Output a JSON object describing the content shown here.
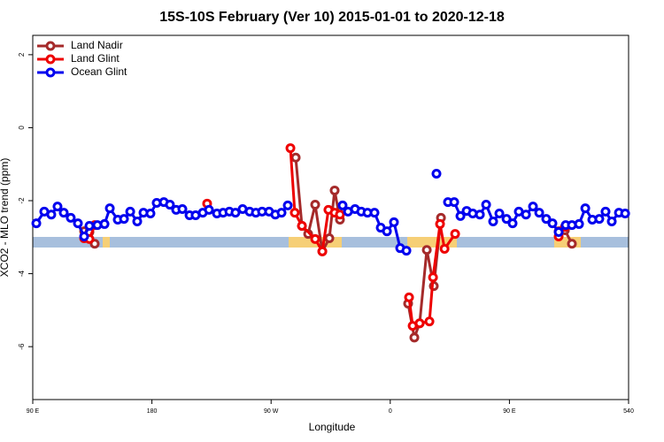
{
  "chart_data": {
    "type": "line",
    "title": "15S-10S February (Ver 10)   2015-01-01 to 2020-12-18",
    "x_label": "Longitude",
    "y_label": "XCO2 - MLO trend (ppm)",
    "xlim": [
      90,
      540
    ],
    "ylim": [
      -7.45,
      2.53
    ],
    "xticks": [
      {
        "value": 90,
        "label": "90 E"
      },
      180,
      {
        "value": 270,
        "label": "90 W"
      },
      {
        "value": 360,
        "label": "0"
      },
      {
        "value": 450,
        "label": "90 E"
      },
      540
    ],
    "yticks": [
      2,
      0,
      -2,
      -4,
      -6
    ],
    "legend": "top-left",
    "series": [
      {
        "name": "Land Nadir",
        "color": "#a52a2a",
        "x": [
          128.8,
          132.8,
          136.8,
          null,
          288.6,
          293.3,
          298.0,
          303.3,
          308.7,
          314.0,
          318.0,
          322.0,
          null,
          373.5,
          378.2,
          382.2,
          387.6,
          392.9,
          398.3,
          null,
          487.2,
          491.9,
          497.2
        ],
        "values": [
          -2.84,
          -2.86,
          -3.18,
          null,
          -0.82,
          -2.69,
          -2.91,
          -2.11,
          -3.39,
          -3.03,
          -1.72,
          -2.52,
          null,
          -4.82,
          -5.75,
          -5.36,
          -3.35,
          -4.34,
          -2.47,
          null,
          -2.84,
          -2.81,
          -3.18
        ]
      },
      {
        "name": "Land Glint",
        "color": "#ee0000",
        "x": [
          128.8,
          132.8,
          136.8,
          null,
          221.7,
          null,
          284.6,
          287.9,
          293.3,
          303.3,
          308.7,
          313.3,
          318.0,
          322.0,
          null,
          374.2,
          376.9,
          382.2,
          389.6,
          392.3,
          397.6,
          401.0,
          409.0,
          null,
          487.2,
          491.9
        ],
        "values": [
          -3.03,
          -3.05,
          -2.67,
          null,
          -2.08,
          null,
          -0.56,
          -2.33,
          -2.69,
          -3.05,
          -3.39,
          -2.25,
          -2.33,
          -2.38,
          null,
          -4.65,
          -5.43,
          -5.36,
          -5.31,
          -4.1,
          -2.64,
          -3.32,
          -2.91,
          null,
          -2.98,
          -2.72
        ]
      },
      {
        "name": "Ocean Glint",
        "color": "#0000ee",
        "x": [
          92.7,
          98.7,
          104.0,
          108.7,
          113.4,
          118.7,
          124.1,
          128.8,
          132.8,
          138.8,
          144.2,
          148.2,
          154.2,
          158.9,
          163.6,
          168.9,
          173.6,
          178.9,
          183.6,
          189.0,
          193.6,
          198.3,
          203.0,
          208.4,
          213.0,
          218.4,
          223.1,
          229.1,
          233.8,
          238.5,
          243.1,
          248.5,
          253.8,
          258.5,
          263.2,
          268.5,
          273.2,
          277.9,
          282.6,
          null,
          324.0,
          328.1,
          333.4,
          338.1,
          342.8,
          348.1,
          352.8,
          357.5,
          362.8,
          367.5,
          372.2,
          null,
          394.9,
          null,
          403.6,
          408.3,
          413.0,
          417.7,
          422.3,
          427.7,
          432.4,
          437.7,
          442.4,
          447.8,
          452.4,
          457.1,
          462.5,
          467.8,
          472.5,
          477.8,
          482.5,
          487.2,
          492.5,
          497.2,
          502.6,
          507.3,
          512.6,
          517.9,
          522.6,
          527.3,
          532.7,
          537.4
        ],
        "values": [
          -2.62,
          -2.3,
          -2.38,
          -2.16,
          -2.33,
          -2.47,
          -2.62,
          -2.98,
          -2.69,
          -2.67,
          -2.64,
          -2.21,
          -2.52,
          -2.5,
          -2.3,
          -2.57,
          -2.33,
          -2.35,
          -2.06,
          -2.04,
          -2.11,
          -2.25,
          -2.23,
          -2.4,
          -2.4,
          -2.33,
          -2.25,
          -2.35,
          -2.33,
          -2.3,
          -2.33,
          -2.23,
          -2.3,
          -2.33,
          -2.3,
          -2.3,
          -2.38,
          -2.33,
          -2.13,
          null,
          -2.13,
          -2.3,
          -2.23,
          -2.3,
          -2.33,
          -2.33,
          -2.74,
          -2.84,
          -2.59,
          -3.3,
          -3.37,
          null,
          -1.26,
          null,
          -2.04,
          -2.04,
          -2.42,
          -2.28,
          -2.35,
          -2.38,
          -2.11,
          -2.57,
          -2.35,
          -2.5,
          -2.62,
          -2.3,
          -2.38,
          -2.16,
          -2.33,
          -2.5,
          -2.62,
          -2.86,
          -2.67,
          -2.67,
          -2.64,
          -2.21,
          -2.52,
          -2.5,
          -2.3,
          -2.57,
          -2.33,
          -2.35
        ]
      }
    ]
  }
}
